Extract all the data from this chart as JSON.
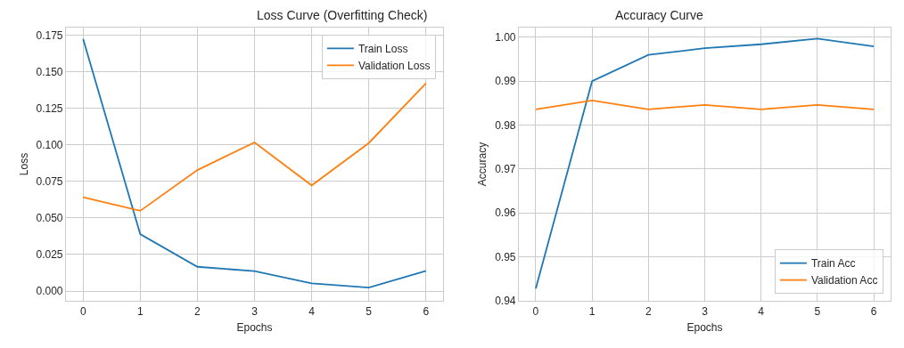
{
  "chart_data": [
    {
      "type": "line",
      "title": "Loss Curve (Overfitting Check)",
      "xlabel": "Epochs",
      "ylabel": "Loss",
      "x": [
        0,
        1,
        2,
        3,
        4,
        5,
        6
      ],
      "series": [
        {
          "name": "Train Loss",
          "color": "#1f77b4",
          "values": [
            0.1726,
            0.0389,
            0.0166,
            0.0136,
            0.0053,
            0.0024,
            0.0138
          ]
        },
        {
          "name": "Validation Loss",
          "color": "#ff7f0e",
          "values": [
            0.0642,
            0.0549,
            0.0828,
            0.1017,
            0.0723,
            0.1013,
            0.1422
          ]
        }
      ],
      "xlim": [
        -0.3,
        6.3
      ],
      "ylim": [
        -0.0067,
        0.1803
      ],
      "xticks": [
        0,
        1,
        2,
        3,
        4,
        5,
        6
      ],
      "yticks": [
        {
          "value": 0,
          "label": "0.000"
        },
        0.025,
        {
          "value": 0.05,
          "label": "0.050"
        },
        0.075,
        {
          "value": 0.1,
          "label": "0.100"
        },
        0.125,
        {
          "value": 0.15,
          "label": "0.150"
        },
        0.175
      ],
      "grid": true,
      "legend": "top right",
      "marker": "none",
      "line_style": "solid"
    },
    {
      "type": "line",
      "title": "Accuracy Curve",
      "xlabel": "Epochs",
      "ylabel": "Accuracy",
      "x": [
        0,
        1,
        2,
        3,
        4,
        5,
        6
      ],
      "series": [
        {
          "name": "Train Acc",
          "color": "#1f77b4",
          "values": [
            0.9428,
            0.99,
            0.996,
            0.9975,
            0.9984,
            0.9997,
            0.9979
          ]
        },
        {
          "name": "Validation Acc",
          "color": "#ff7f0e",
          "values": [
            0.9836,
            0.9856,
            0.9836,
            0.9846,
            0.9836,
            0.9846,
            0.9836
          ]
        }
      ],
      "xlim": [
        -0.3,
        6.3
      ],
      "ylim": [
        0.94,
        1.0022
      ],
      "xticks": [
        0,
        1,
        2,
        3,
        4,
        5,
        6
      ],
      "yticks": [
        0.94,
        0.95,
        0.96,
        0.97,
        0.98,
        0.99,
        {
          "value": 1,
          "label": "1.00"
        }
      ],
      "grid": true,
      "legend": "bottom right",
      "marker": "none",
      "line_style": "solid"
    }
  ]
}
